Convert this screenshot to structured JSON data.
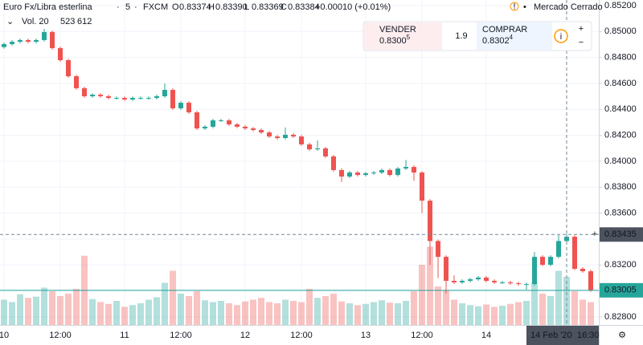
{
  "chart_data": {
    "type": "candlestick",
    "title": "Euro Fx/Libra esterlina",
    "interval": "5",
    "source": "FXCM",
    "legend_items": [
      {
        "key": "O",
        "text": "0.83374"
      },
      {
        "key": "H",
        "text": "0.83390"
      },
      {
        "key": "L",
        "text": "0.83369"
      },
      {
        "key": "C",
        "text": "0.83384"
      }
    ],
    "change": "+0.00010 (+0.01%)",
    "market_status": "Mercado Cerrado",
    "volume_label": "Vol. 20",
    "volume_values": [
      "523",
      "612"
    ],
    "trade_widget": {
      "sell_label": "VENDER",
      "sell_price": "0.8300",
      "sell_sup": "5",
      "spread": "1.9",
      "buy_label": "COMPRAR",
      "buy_price": "0.8302",
      "buy_sup": "4"
    },
    "up_color": "#26a69a",
    "down_color": "#ef5350",
    "categories": [
      "10",
      null,
      null,
      null,
      null,
      null,
      null,
      "12:00",
      null,
      null,
      null,
      null,
      null,
      null,
      null,
      "11",
      null,
      null,
      null,
      null,
      null,
      null,
      "12:00",
      null,
      null,
      null,
      null,
      null,
      null,
      null,
      "12",
      null,
      null,
      null,
      null,
      null,
      null,
      "12:00",
      null,
      null,
      null,
      null,
      null,
      null,
      null,
      "13",
      null,
      null,
      null,
      null,
      null,
      null,
      "12:00",
      null,
      null,
      null,
      null,
      null,
      null,
      null,
      "14",
      null,
      null,
      null,
      null,
      null,
      null,
      null,
      null,
      null,
      null,
      null,
      null,
      null
    ],
    "open": [
      0.8488,
      0.84903,
      0.84921,
      0.84934,
      0.84921,
      0.84934,
      0.84996,
      0.84872,
      0.84779,
      0.84655,
      0.84563,
      0.84501,
      0.84513,
      0.84501,
      0.84488,
      0.84488,
      0.84476,
      0.84488,
      0.84488,
      0.84488,
      0.84501,
      0.8455,
      0.84408,
      0.84451,
      0.84377,
      0.84253,
      0.84266,
      0.84315,
      0.84315,
      0.84284,
      0.84266,
      0.84253,
      0.84241,
      0.84222,
      0.84191,
      0.84179,
      0.84204,
      0.84191,
      0.8413,
      0.84092,
      0.84099,
      0.84037,
      0.83932,
      0.83882,
      0.83913,
      0.83894,
      0.83907,
      0.83913,
      0.83932,
      0.83894,
      0.83944,
      0.83956,
      0.83913,
      0.83696,
      0.83385,
      0.83263,
      0.83078,
      0.83066,
      0.83078,
      0.8309,
      0.83103,
      0.83078,
      0.83066,
      0.83066,
      0.83059,
      0.83053,
      0.83053,
      0.83263,
      0.83202,
      0.83263,
      0.83385,
      0.83418,
      0.83171,
      0.83152
    ],
    "high": [
      0.84915,
      0.84933,
      0.84946,
      0.84946,
      0.84946,
      0.8502,
      0.85008,
      0.84884,
      0.84791,
      0.84667,
      0.84575,
      0.84525,
      0.84525,
      0.84513,
      0.845,
      0.845,
      0.845,
      0.845,
      0.845,
      0.84513,
      0.846,
      0.84562,
      0.84463,
      0.84463,
      0.84389,
      0.84278,
      0.84327,
      0.84327,
      0.84327,
      0.84296,
      0.84278,
      0.84265,
      0.84253,
      0.84234,
      0.84203,
      0.8426,
      0.84216,
      0.84203,
      0.84142,
      0.8416,
      0.84111,
      0.84049,
      0.83944,
      0.83925,
      0.83925,
      0.83919,
      0.83925,
      0.83944,
      0.83944,
      0.83956,
      0.8401,
      0.83968,
      0.83925,
      0.83708,
      0.83397,
      0.83275,
      0.8312,
      0.8309,
      0.83102,
      0.83115,
      0.83115,
      0.8309,
      0.83078,
      0.83078,
      0.83071,
      0.83065,
      0.833,
      0.83275,
      0.83275,
      0.8343,
      0.8344,
      0.8343,
      0.83183,
      0.83164
    ],
    "low": [
      0.84868,
      0.84891,
      0.84909,
      0.84909,
      0.84909,
      0.84922,
      0.8486,
      0.84767,
      0.84643,
      0.84551,
      0.84489,
      0.84489,
      0.84489,
      0.84476,
      0.84476,
      0.84464,
      0.84464,
      0.84476,
      0.84476,
      0.84476,
      0.84489,
      0.84396,
      0.84396,
      0.84365,
      0.84241,
      0.84241,
      0.84254,
      0.84303,
      0.84272,
      0.84254,
      0.84241,
      0.84229,
      0.8421,
      0.84179,
      0.84167,
      0.84167,
      0.84179,
      0.84118,
      0.8408,
      0.8408,
      0.84025,
      0.8392,
      0.8384,
      0.8387,
      0.83882,
      0.83882,
      0.83895,
      0.83901,
      0.83882,
      0.83882,
      0.83932,
      0.8385,
      0.836,
      0.832,
      0.831,
      0.8298,
      0.83054,
      0.83054,
      0.83066,
      0.83078,
      0.83066,
      0.83054,
      0.83054,
      0.83047,
      0.83041,
      0.8301,
      0.83041,
      0.8319,
      0.8319,
      0.83251,
      0.83373,
      0.83159,
      0.8314,
      0.82993
    ],
    "close": [
      0.84903,
      0.84921,
      0.84934,
      0.84921,
      0.84934,
      0.84996,
      0.84872,
      0.84779,
      0.84655,
      0.84563,
      0.84501,
      0.84513,
      0.84501,
      0.84488,
      0.84488,
      0.84476,
      0.84488,
      0.84488,
      0.84488,
      0.84501,
      0.8455,
      0.84408,
      0.84451,
      0.84377,
      0.84253,
      0.84266,
      0.84315,
      0.84315,
      0.84284,
      0.84266,
      0.84253,
      0.84241,
      0.84222,
      0.84191,
      0.84179,
      0.84204,
      0.84191,
      0.8413,
      0.84092,
      0.84099,
      0.84037,
      0.83932,
      0.83882,
      0.83913,
      0.83894,
      0.83907,
      0.83913,
      0.83932,
      0.83894,
      0.83944,
      0.83956,
      0.83913,
      0.83696,
      0.83385,
      0.83263,
      0.83078,
      0.83066,
      0.83078,
      0.8309,
      0.83103,
      0.83078,
      0.83066,
      0.83066,
      0.83059,
      0.83053,
      0.83053,
      0.83263,
      0.83202,
      0.83263,
      0.83385,
      0.83418,
      0.83171,
      0.83152,
      0.83005
    ],
    "volume": [
      420,
      380,
      510,
      450,
      470,
      620,
      560,
      480,
      520,
      600,
      1150,
      430,
      380,
      350,
      400,
      300,
      330,
      360,
      420,
      460,
      700,
      900,
      520,
      480,
      560,
      410,
      380,
      400,
      360,
      330,
      390,
      420,
      450,
      380,
      360,
      420,
      400,
      380,
      600,
      450,
      480,
      520,
      390,
      360,
      330,
      350,
      380,
      410,
      370,
      360,
      400,
      560,
      1000,
      1300,
      640,
      580,
      420,
      360,
      330,
      310,
      340,
      300,
      320,
      350,
      380,
      400,
      700,
      520,
      480,
      900,
      800,
      560,
      420,
      380
    ],
    "volume_ylim": [
      0,
      1800
    ],
    "ylim": [
      0.82738,
      0.85243
    ],
    "yticks": [
      {
        "value": 0.852,
        "label": "0.85200"
      },
      {
        "value": 0.85,
        "label": "0.85000"
      },
      {
        "value": 0.848,
        "label": "0.84800"
      },
      {
        "value": 0.846,
        "label": "0.84600"
      },
      {
        "value": 0.844,
        "label": "0.84400"
      },
      {
        "value": 0.842,
        "label": "0.84200"
      },
      {
        "value": 0.84,
        "label": "0.84000"
      },
      {
        "value": 0.838,
        "label": "0.83800"
      },
      {
        "value": 0.836,
        "label": "0.83600"
      },
      {
        "value": 0.834,
        "label": "0.83400"
      },
      {
        "value": 0.832,
        "label": "0.83200"
      },
      {
        "value": 0.83,
        "label": "0.83000"
      },
      {
        "value": 0.828,
        "label": "0.82800"
      }
    ],
    "grid": true,
    "crosshair": {
      "date": "14 Feb '20",
      "time": "16:30",
      "price": 0.83435
    },
    "last_price": 0.83005
  }
}
